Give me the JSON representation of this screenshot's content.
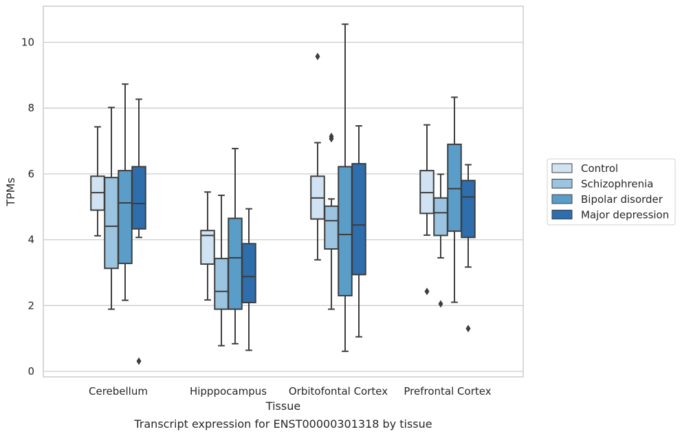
{
  "chart_data": {
    "type": "box",
    "caption": "Transcript expression for ENST00000301318 by tissue",
    "xlabel": "Tissue",
    "ylabel": "TPMs",
    "ylim": [
      -0.15,
      11.1
    ],
    "yticks": [
      0,
      2,
      4,
      6,
      8,
      10
    ],
    "grid": "horizontal",
    "legend_position": "right",
    "categories": [
      "Cerebellum",
      "Hipppocampus",
      "Orbitofontal Cortex",
      "Prefrontal Cortex"
    ],
    "series": [
      {
        "name": "Control",
        "color": "#d1e2f2",
        "boxes": [
          {
            "whislo": 4.12,
            "q1": 4.9,
            "med": 5.43,
            "q3": 5.93,
            "whishi": 7.43,
            "fliers": []
          },
          {
            "whislo": 2.17,
            "q1": 3.26,
            "med": 4.13,
            "q3": 4.28,
            "whishi": 5.45,
            "fliers": []
          },
          {
            "whislo": 3.39,
            "q1": 4.63,
            "med": 5.27,
            "q3": 5.93,
            "whishi": 6.95,
            "fliers": [
              9.57
            ]
          },
          {
            "whislo": 4.14,
            "q1": 4.8,
            "med": 5.43,
            "q3": 6.1,
            "whishi": 7.49,
            "fliers": [
              2.43
            ]
          }
        ]
      },
      {
        "name": "Schizophrenia",
        "color": "#9ac4df",
        "boxes": [
          {
            "whislo": 1.89,
            "q1": 3.13,
            "med": 4.41,
            "q3": 5.89,
            "whishi": 8.02,
            "fliers": []
          },
          {
            "whislo": 0.78,
            "q1": 1.89,
            "med": 2.43,
            "q3": 3.43,
            "whishi": 5.35,
            "fliers": []
          },
          {
            "whislo": 1.89,
            "q1": 3.72,
            "med": 4.58,
            "q3": 5.02,
            "whishi": 5.24,
            "fliers": [
              7.07,
              7.14
            ]
          },
          {
            "whislo": 3.45,
            "q1": 4.13,
            "med": 4.82,
            "q3": 5.27,
            "whishi": 5.99,
            "fliers": [
              2.05
            ]
          }
        ]
      },
      {
        "name": "Bipolar disorder",
        "color": "#5b9dc9",
        "boxes": [
          {
            "whislo": 2.16,
            "q1": 3.28,
            "med": 5.12,
            "q3": 6.1,
            "whishi": 8.73,
            "fliers": []
          },
          {
            "whislo": 0.84,
            "q1": 1.89,
            "med": 3.45,
            "q3": 4.65,
            "whishi": 6.77,
            "fliers": []
          },
          {
            "whislo": 0.61,
            "q1": 2.3,
            "med": 4.16,
            "q3": 6.22,
            "whishi": 10.55,
            "fliers": []
          },
          {
            "whislo": 2.1,
            "q1": 4.26,
            "med": 5.55,
            "q3": 6.9,
            "whishi": 8.33,
            "fliers": []
          }
        ]
      },
      {
        "name": "Major depression",
        "color": "#2e6ead",
        "boxes": [
          {
            "whislo": 4.07,
            "q1": 4.33,
            "med": 5.1,
            "q3": 6.22,
            "whishi": 8.27,
            "fliers": [
              0.31
            ]
          },
          {
            "whislo": 0.64,
            "q1": 2.09,
            "med": 2.88,
            "q3": 3.88,
            "whishi": 4.94,
            "fliers": []
          },
          {
            "whislo": 1.05,
            "q1": 2.94,
            "med": 4.45,
            "q3": 6.31,
            "whishi": 7.46,
            "fliers": []
          },
          {
            "whislo": 3.17,
            "q1": 4.07,
            "med": 5.3,
            "q3": 5.8,
            "whishi": 6.28,
            "fliers": [
              1.3
            ]
          }
        ]
      }
    ]
  }
}
